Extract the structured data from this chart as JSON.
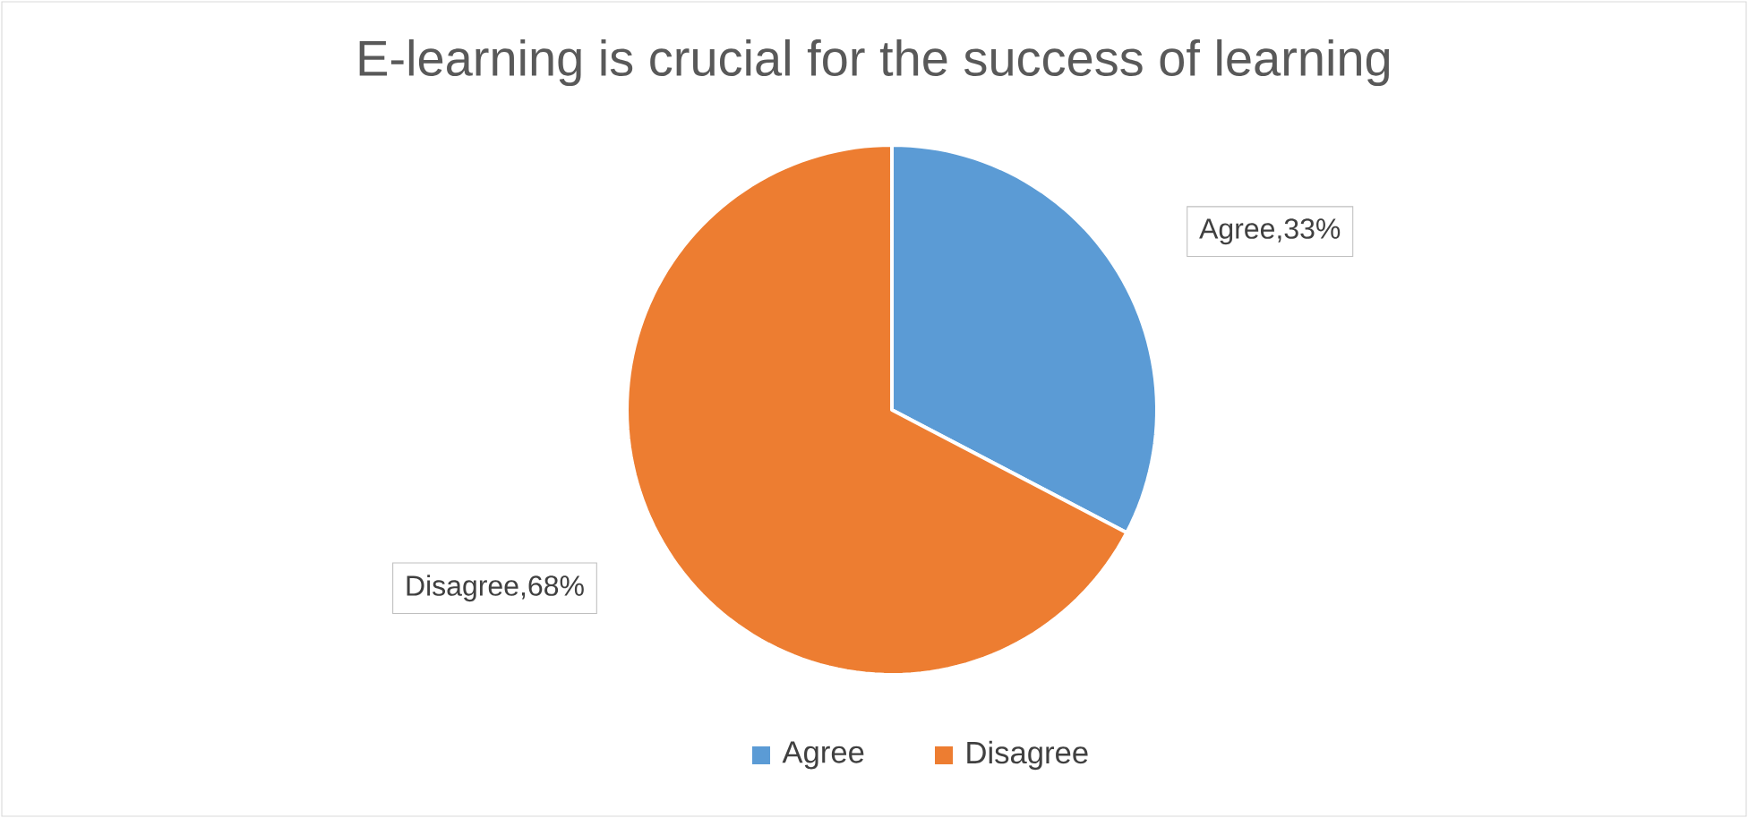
{
  "chart_data": {
    "type": "pie",
    "title": "E-learning is crucial for the success of learning",
    "categories": [
      "Agree",
      "Disagree"
    ],
    "values": [
      33,
      68
    ],
    "colors": [
      "#5b9bd5",
      "#ed7d31"
    ],
    "value_labels": [
      ",33%",
      ",68%"
    ],
    "legend": "bottom"
  }
}
